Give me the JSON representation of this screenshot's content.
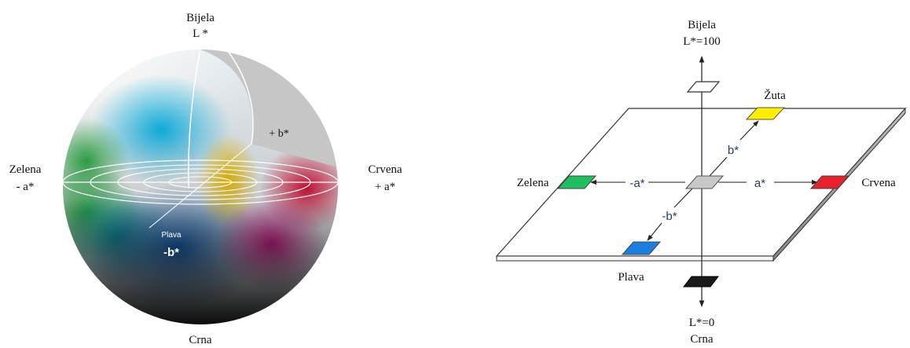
{
  "sphere": {
    "top_label": "Bijela",
    "top_axis": "L *",
    "right_label": "Crvena",
    "right_axis": "+ a*",
    "left_label": "Zelena",
    "left_axis": "- a*",
    "bplus_label": "+ b*",
    "blue_name": "Plava",
    "bminus_label": "-b*",
    "bottom_label": "Crna"
  },
  "plane": {
    "top_label": "Bijela",
    "top_value": "L*=100",
    "yellow_label": "Žuta",
    "bplus_axis": "b*",
    "left_label": "Zelena",
    "aminus_axis": "-a*",
    "aplus_axis": "a*",
    "right_label": "Crvena",
    "bminus_axis": "-b*",
    "blue_label": "Plava",
    "bottom_value": "L*=0",
    "bottom_label": "Crna"
  },
  "colors": {
    "white": "#ffffff",
    "yellow": "#ffee00",
    "green": "#1fbf5f",
    "red": "#e8202a",
    "blue": "#1a7fe0",
    "black": "#1a1a1a",
    "gray": "#c8c8c8"
  }
}
